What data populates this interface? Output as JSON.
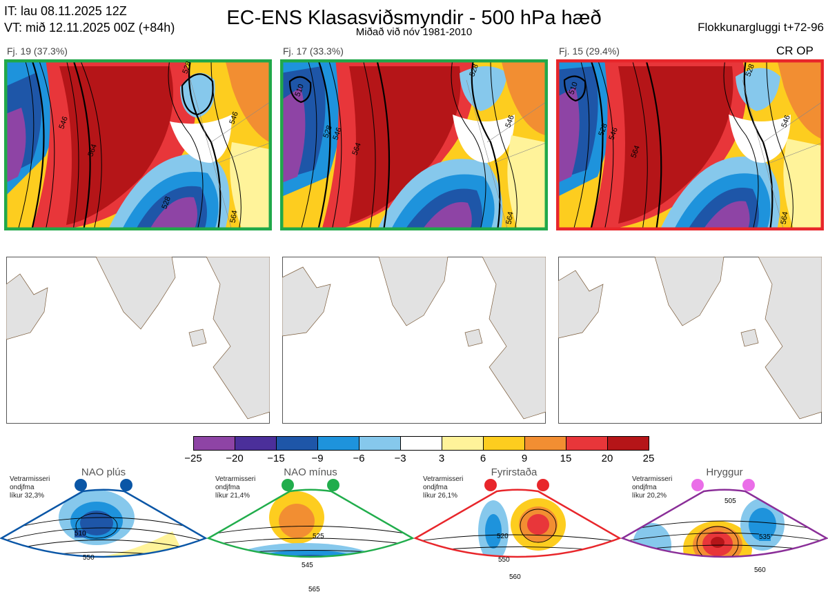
{
  "header": {
    "it": "IT: lau 08.11.2025 12Z",
    "vt": "VT: mið 12.11.2025 00Z  (+84h)",
    "title": "EC-ENS Klasasviðsmyndir - 500 hPa hæð",
    "subtitle": "Miðað við nóv 1981-2010",
    "window": "Flokkunargluggi t+72-96"
  },
  "clusters": [
    {
      "label": "Fj. 19 (37.3%)",
      "members": 19,
      "percent": 37.3,
      "frame_color": "#21a84a",
      "tag": "",
      "contours": [
        "528",
        "546",
        "564",
        "528",
        "546",
        "564"
      ]
    },
    {
      "label": "Fj. 17 (33.3%)",
      "members": 17,
      "percent": 33.3,
      "frame_color": "#21a84a",
      "tag": "",
      "contours": [
        "510",
        "528",
        "546",
        "564",
        "528",
        "546",
        "564"
      ]
    },
    {
      "label": "Fj. 15 (29.4%)",
      "members": 15,
      "percent": 29.4,
      "frame_color": "#e8262b",
      "tag": "CR OP",
      "contours": [
        "510",
        "528",
        "546",
        "564",
        "528",
        "546",
        "564"
      ]
    }
  ],
  "colorbar": {
    "ticks": [
      "−25",
      "−20",
      "−15",
      "−9",
      "−6",
      "−3",
      "3",
      "6",
      "9",
      "15",
      "20",
      "25"
    ],
    "colors": [
      "#8e44a5",
      "#4b2f9a",
      "#1e56a8",
      "#1e93dc",
      "#86c8ec",
      "#ffffff",
      "#fff39a",
      "#fdcd1f",
      "#f28e32",
      "#e8363a",
      "#b51518"
    ]
  },
  "regimes": [
    {
      "name": "NAO plús",
      "header": "Vetrarmisseri",
      "subheader": "ondjfma",
      "freq": "líkur 32,3%",
      "color": "#0a56a6",
      "contours": [
        "510",
        "550"
      ]
    },
    {
      "name": "NAO mínus",
      "header": "Vetrarmisseri",
      "subheader": "ondjfma",
      "freq": "líkur 21,4%",
      "color": "#21ad4c",
      "contours": [
        "525",
        "545",
        "565"
      ]
    },
    {
      "name": "Fyrirstaða",
      "header": "Vetrarmisseri",
      "subheader": "ondjfma",
      "freq": "líkur 26,1%",
      "color": "#e8262b",
      "contours": [
        "520",
        "550",
        "560"
      ]
    },
    {
      "name": "Hryggur",
      "header": "Vetrarmisseri",
      "subheader": "ondjfma",
      "freq": "líkur 20,2%",
      "color": "#ea6ee8",
      "contours": [
        "505",
        "535",
        "560"
      ]
    }
  ]
}
